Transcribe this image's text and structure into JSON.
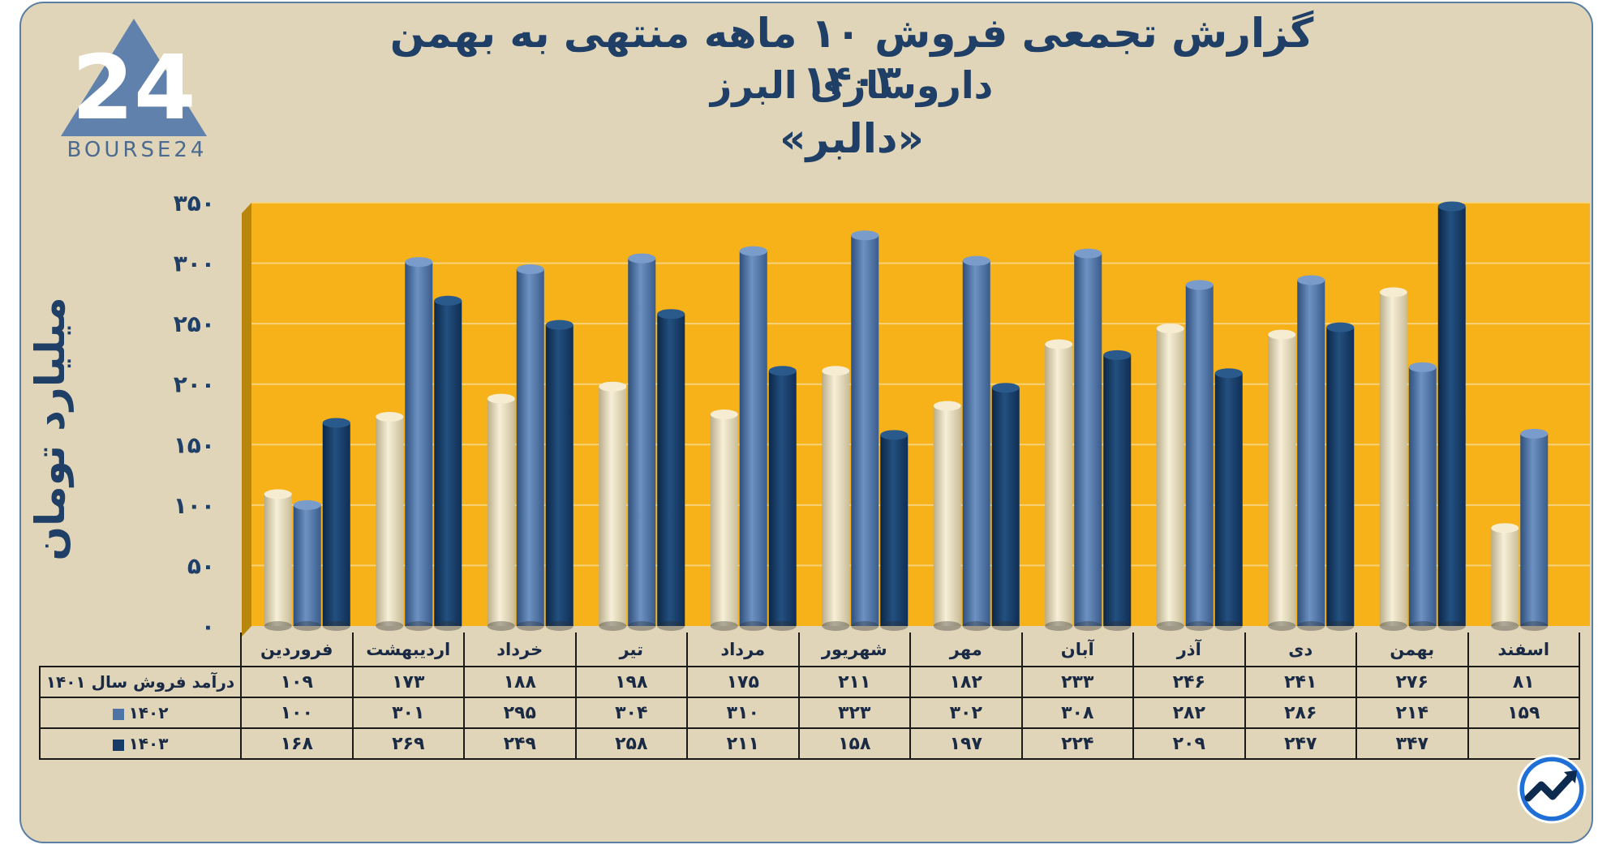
{
  "title": {
    "line1": "گزارش تجمعی فروش ۱۰ ماهه منتهی به بهمن ۱۴۰۳",
    "line2": "داروسازی البرز",
    "line3": "«دالبر»"
  },
  "logo": {
    "mark": "24",
    "text": "BOURSE24"
  },
  "colors": {
    "plot_bg": "#f6b218",
    "frame_bg": "#e0d5b8",
    "series_1401": "#ede1bf",
    "series_1402": "#4e73a5",
    "series_1403": "#163b66",
    "text_dark": "#1f3f66"
  },
  "table": {
    "rows": [
      {
        "label": "درآمد فروش سال ۱۴۰۱",
        "swatch": "",
        "values": [
          "۱۰۹",
          "۱۷۳",
          "۱۸۸",
          "۱۹۸",
          "۱۷۵",
          "۲۱۱",
          "۱۸۲",
          "۲۳۳",
          "۲۴۶",
          "۲۴۱",
          "۲۷۶",
          "۸۱"
        ]
      },
      {
        "label": "۱۴۰۲",
        "swatch": "#4e73a5",
        "values": [
          "۱۰۰",
          "۳۰۱",
          "۲۹۵",
          "۳۰۴",
          "۳۱۰",
          "۳۲۳",
          "۳۰۲",
          "۳۰۸",
          "۲۸۲",
          "۲۸۶",
          "۲۱۴",
          "۱۵۹"
        ]
      },
      {
        "label": "۱۴۰۳",
        "swatch": "#163b66",
        "values": [
          "۱۶۸",
          "۲۶۹",
          "۲۴۹",
          "۲۵۸",
          "۲۱۱",
          "۱۵۸",
          "۱۹۷",
          "۲۲۴",
          "۲۰۹",
          "۲۴۷",
          "۳۴۷",
          ""
        ]
      }
    ]
  },
  "chart_data": {
    "type": "bar",
    "categories": [
      "فروردین",
      "اردیبهشت",
      "خرداد",
      "تیر",
      "مرداد",
      "شهریور",
      "مهر",
      "آبان",
      "آذر",
      "دی",
      "بهمن",
      "اسفند"
    ],
    "series": [
      {
        "name": "درآمد فروش سال ۱۴۰۱",
        "values": [
          109,
          173,
          188,
          198,
          175,
          211,
          182,
          233,
          246,
          241,
          276,
          81
        ]
      },
      {
        "name": "۱۴۰۲",
        "values": [
          100,
          301,
          295,
          304,
          310,
          323,
          302,
          308,
          282,
          286,
          214,
          159
        ]
      },
      {
        "name": "۱۴۰۳",
        "values": [
          168,
          269,
          249,
          258,
          211,
          158,
          197,
          224,
          209,
          247,
          347,
          null
        ]
      }
    ],
    "ylabel": "میلیارد تومان",
    "xlabel": "",
    "ylim": [
      0,
      350
    ],
    "yticks": [
      0,
      50,
      100,
      150,
      200,
      250,
      300,
      350
    ],
    "ytick_labels": [
      "۰",
      "۵۰",
      "۱۰۰",
      "۱۵۰",
      "۲۰۰",
      "۲۵۰",
      "۳۰۰",
      "۳۵۰"
    ],
    "grid": true,
    "legend": "table-below"
  }
}
